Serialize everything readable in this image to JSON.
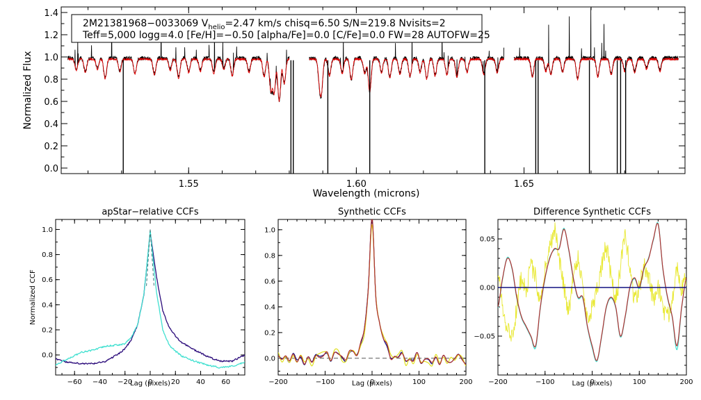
{
  "chart_data": [
    {
      "type": "line",
      "name": "spectrum",
      "xlabel": "Wavelength (microns)",
      "ylabel": "Normalized Flux",
      "xlim": [
        1.512,
        1.698
      ],
      "ylim": [
        -0.05,
        1.45
      ],
      "xticks": [
        1.55,
        1.6,
        1.65
      ],
      "xtick_labels": [
        "1.55",
        "1.60",
        "1.65"
      ],
      "yticks": [
        0.0,
        0.2,
        0.4,
        0.6,
        0.8,
        1.0,
        1.2,
        1.4
      ],
      "ytick_labels": [
        "0.0",
        "0.2",
        "0.4",
        "0.6",
        "0.8",
        "1.0",
        "1.2",
        "1.4"
      ],
      "info_box": {
        "line1_pre": "2M21381968−0033069  V",
        "line1_sub": "helio",
        "line1_post": "=2.47 km/s  chisq=6.50  S/N=219.8  Nvisits=2",
        "line2": "Teff=5,000 logg=4.0 [Fe/H]=−0.50 [alpha/Fe]=0.0 [C/Fe]=0.0 FW=28 AUTOFW=25"
      },
      "chips": [
        [
          1.514,
          1.58
        ],
        [
          1.586,
          1.644
        ],
        [
          1.647,
          1.696
        ]
      ],
      "series": [
        {
          "name": "observed",
          "color": "#000000",
          "continuum": 0.99
        },
        {
          "name": "model",
          "color": "#e00000",
          "continuum": 0.98
        }
      ],
      "absorption_lines": [
        [
          1.5165,
          0.9
        ],
        [
          1.5192,
          0.88
        ],
        [
          1.5228,
          0.91
        ],
        [
          1.5251,
          0.82
        ],
        [
          1.5295,
          0.89
        ],
        [
          1.534,
          0.87
        ],
        [
          1.5398,
          0.86
        ],
        [
          1.5445,
          0.9
        ],
        [
          1.547,
          0.83
        ],
        [
          1.55,
          0.88
        ],
        [
          1.5535,
          0.89
        ],
        [
          1.5575,
          0.87
        ],
        [
          1.5605,
          0.91
        ],
        [
          1.563,
          0.85
        ],
        [
          1.568,
          0.88
        ],
        [
          1.5725,
          0.84
        ],
        [
          1.5745,
          0.72
        ],
        [
          1.5755,
          0.7
        ],
        [
          1.577,
          0.62
        ],
        [
          1.5785,
          0.78
        ],
        [
          1.589,
          0.82
        ],
        [
          1.5896,
          0.74
        ],
        [
          1.592,
          0.85
        ],
        [
          1.5958,
          0.87
        ],
        [
          1.5985,
          0.81
        ],
        [
          1.6025,
          0.87
        ],
        [
          1.604,
          0.7
        ],
        [
          1.6075,
          0.88
        ],
        [
          1.61,
          0.83
        ],
        [
          1.613,
          0.86
        ],
        [
          1.616,
          0.84
        ],
        [
          1.619,
          0.88
        ],
        [
          1.621,
          0.82
        ],
        [
          1.6235,
          0.85
        ],
        [
          1.627,
          0.86
        ],
        [
          1.63,
          0.84
        ],
        [
          1.633,
          0.88
        ],
        [
          1.638,
          0.86
        ],
        [
          1.642,
          0.88
        ],
        [
          1.6525,
          0.84
        ],
        [
          1.6565,
          0.89
        ],
        [
          1.658,
          0.86
        ],
        [
          1.6615,
          0.88
        ],
        [
          1.666,
          0.82
        ],
        [
          1.672,
          0.84
        ],
        [
          1.676,
          0.86
        ],
        [
          1.68,
          0.89
        ],
        [
          1.683,
          0.88
        ],
        [
          1.6865,
          0.91
        ],
        [
          1.6905,
          0.89
        ]
      ],
      "masked_drops": [
        1.5305,
        1.5805,
        1.5812,
        1.5915,
        1.604,
        1.6383,
        1.6535,
        1.6542,
        1.6695,
        1.6778,
        1.6788,
        1.6803
      ]
    },
    {
      "type": "line",
      "name": "apstar-ccf",
      "title": "apStar−relative CCFs",
      "xlabel": "Lag (pixels)",
      "ylabel": "Normalized CCF",
      "xlim": [
        -75,
        75
      ],
      "ylim": [
        -0.16,
        1.08
      ],
      "xticks": [
        -60,
        -40,
        -20,
        0,
        20,
        40,
        60
      ],
      "xtick_labels": [
        "−60",
        "−40",
        "−20",
        "0",
        "20",
        "40",
        "60"
      ],
      "yticks": [
        0.0,
        0.2,
        0.4,
        0.6,
        0.8,
        1.0
      ],
      "ytick_labels": [
        "0.0",
        "0.2",
        "0.4",
        "0.6",
        "0.8",
        "1.0"
      ],
      "series": [
        {
          "name": "visit-1",
          "color": "#2a0a7a",
          "x": [
            -75,
            -65,
            -55,
            -45,
            -35,
            -25,
            -20,
            -15,
            -10,
            -5,
            0,
            5,
            10,
            15,
            20,
            25,
            35,
            45,
            55,
            65,
            75
          ],
          "y": [
            -0.03,
            -0.06,
            -0.07,
            -0.07,
            -0.05,
            0.01,
            0.05,
            0.12,
            0.24,
            0.48,
            0.98,
            0.62,
            0.35,
            0.22,
            0.15,
            0.1,
            0.04,
            -0.01,
            -0.05,
            -0.05,
            0.0
          ]
        },
        {
          "name": "visit-2",
          "color": "#40e0d0",
          "x": [
            -75,
            -65,
            -55,
            -45,
            -35,
            -25,
            -20,
            -15,
            -10,
            -5,
            0,
            5,
            10,
            15,
            20,
            25,
            35,
            45,
            55,
            65,
            75
          ],
          "y": [
            -0.08,
            -0.03,
            0.02,
            0.04,
            0.07,
            0.08,
            0.09,
            0.14,
            0.24,
            0.48,
            0.99,
            0.5,
            0.2,
            0.08,
            0.03,
            -0.01,
            -0.05,
            -0.08,
            -0.1,
            -0.09,
            -0.06
          ]
        }
      ]
    },
    {
      "type": "line",
      "name": "synthetic-ccf",
      "title": "Synthetic CCFs",
      "xlabel": "Lag (pixels)",
      "xlim": [
        -200,
        200
      ],
      "ylim": [
        -0.13,
        1.08
      ],
      "xticks": [
        -200,
        -100,
        0,
        100,
        200
      ],
      "xtick_labels": [
        "−200",
        "−100",
        "0",
        "100",
        "200"
      ],
      "yticks": [
        0.0,
        0.2,
        0.4,
        0.6,
        0.8,
        1.0
      ],
      "ytick_labels": [
        "0.0",
        "0.2",
        "0.4",
        "0.6",
        "0.8",
        "1.0"
      ],
      "zero_line": {
        "y": 0.0,
        "color": "#555555",
        "style": "dashed"
      },
      "series": [
        {
          "name": "visit-1",
          "color": "#101080"
        },
        {
          "name": "visit-2",
          "color": "#e0e020"
        },
        {
          "name": "combined",
          "color": "#b03030"
        }
      ]
    },
    {
      "type": "line",
      "name": "difference-ccf",
      "title": "Difference Synthetic CCFs",
      "xlabel": "Lag (pixels)",
      "xlim": [
        -200,
        200
      ],
      "ylim": [
        -0.09,
        0.07
      ],
      "xticks": [
        -200,
        -100,
        0,
        100,
        200
      ],
      "xtick_labels": [
        "−200",
        "−100",
        "0",
        "100",
        "200"
      ],
      "yticks": [
        -0.05,
        0.0,
        0.05
      ],
      "ytick_labels": [
        "−0.05",
        "0.00",
        "0.05"
      ],
      "series": [
        {
          "name": "visit-1",
          "color": "#101080",
          "x": [
            -200,
            200
          ],
          "y": [
            0.0,
            0.0
          ]
        },
        {
          "name": "visit-2",
          "color": "#e8e830",
          "x": [
            -200,
            -190,
            -180,
            -170,
            -160,
            -150,
            -140,
            -130,
            -120,
            -110,
            -100,
            -90,
            -80,
            -70,
            -60,
            -50,
            -40,
            -30,
            -20,
            -10,
            0,
            10,
            20,
            30,
            40,
            50,
            60,
            70,
            80,
            90,
            100,
            110,
            120,
            130,
            140,
            150,
            160,
            170,
            180,
            190,
            200
          ],
          "y": [
            0.02,
            -0.02,
            -0.04,
            -0.05,
            -0.02,
            0.01,
            0.0,
            0.02,
            0.01,
            -0.01,
            0.02,
            0.04,
            0.06,
            0.03,
            0.0,
            -0.02,
            0.01,
            0.03,
            0.0,
            -0.03,
            -0.02,
            0.0,
            0.02,
            0.04,
            0.01,
            -0.01,
            0.02,
            0.05,
            0.02,
            -0.01,
            0.0,
            0.02,
            0.01,
            -0.01,
            0.0,
            -0.02,
            -0.03,
            -0.01,
            0.02,
            0.0,
            0.01
          ]
        },
        {
          "name": "combined",
          "color": "#b03030",
          "x": [
            -200,
            -190,
            -180,
            -170,
            -160,
            -150,
            -140,
            -130,
            -120,
            -110,
            -100,
            -90,
            -80,
            -70,
            -60,
            -50,
            -40,
            -30,
            -20,
            -10,
            0,
            10,
            20,
            30,
            40,
            50,
            60,
            70,
            80,
            90,
            100,
            110,
            120,
            130,
            140,
            150,
            160,
            170,
            180,
            190,
            200
          ],
          "y": [
            -0.02,
            0.01,
            0.03,
            0.02,
            -0.01,
            -0.03,
            -0.04,
            -0.05,
            -0.06,
            -0.02,
            0.01,
            0.03,
            0.04,
            0.04,
            0.06,
            0.04,
            0.01,
            -0.01,
            -0.01,
            -0.04,
            -0.06,
            -0.075,
            -0.05,
            -0.02,
            -0.01,
            -0.02,
            -0.05,
            -0.03,
            0.0,
            0.01,
            0.0,
            0.02,
            0.03,
            0.05,
            0.065,
            0.02,
            -0.01,
            -0.03,
            -0.06,
            -0.02,
            0.01
          ]
        },
        {
          "name": "combined-2",
          "color": "#40e0d0",
          "x": [
            -200,
            -190,
            -180,
            -170,
            -160,
            -150,
            -140,
            -130,
            -120,
            -110,
            -100,
            -90,
            -80,
            -70,
            -60,
            -50,
            -40,
            -30,
            -20,
            -10,
            0,
            10,
            20,
            30,
            40,
            50,
            60,
            70,
            80,
            90,
            100,
            110,
            120,
            130,
            140,
            150,
            160,
            170,
            180,
            190,
            200
          ],
          "y": [
            -0.021,
            0.009,
            0.031,
            0.019,
            -0.011,
            -0.031,
            -0.041,
            -0.051,
            -0.062,
            -0.021,
            0.009,
            0.031,
            0.039,
            0.041,
            0.061,
            0.039,
            0.009,
            -0.011,
            -0.011,
            -0.041,
            -0.062,
            -0.076,
            -0.051,
            -0.021,
            -0.011,
            -0.021,
            -0.051,
            -0.031,
            -0.001,
            0.009,
            -0.001,
            0.019,
            0.031,
            0.049,
            0.066,
            0.019,
            -0.011,
            -0.031,
            -0.064,
            -0.021,
            0.009
          ]
        }
      ]
    }
  ]
}
